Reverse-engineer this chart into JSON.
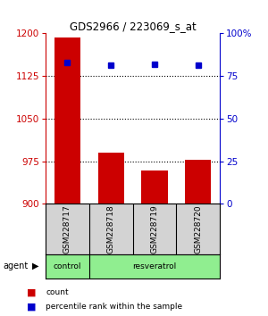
{
  "title": "GDS2966 / 223069_s_at",
  "samples": [
    "GSM228717",
    "GSM228718",
    "GSM228719",
    "GSM228720"
  ],
  "bar_values": [
    1193,
    990,
    958,
    978
  ],
  "percentile_values": [
    83,
    81,
    82,
    81
  ],
  "bar_color": "#cc0000",
  "dot_color": "#0000cc",
  "ylim_left": [
    900,
    1200
  ],
  "yticks_left": [
    900,
    975,
    1050,
    1125,
    1200
  ],
  "ylim_right": [
    0,
    100
  ],
  "yticks_right": [
    0,
    25,
    50,
    75,
    100
  ],
  "ytick_labels_right": [
    "0",
    "25",
    "50",
    "75",
    "100%"
  ],
  "agent_label": "agent",
  "bg_color": "#ffffff",
  "sample_box_color": "#d3d3d3",
  "group_color": "#90ee90",
  "left_tick_color": "#cc0000",
  "right_tick_color": "#0000cc",
  "grid_ticks": [
    975,
    1050,
    1125
  ]
}
